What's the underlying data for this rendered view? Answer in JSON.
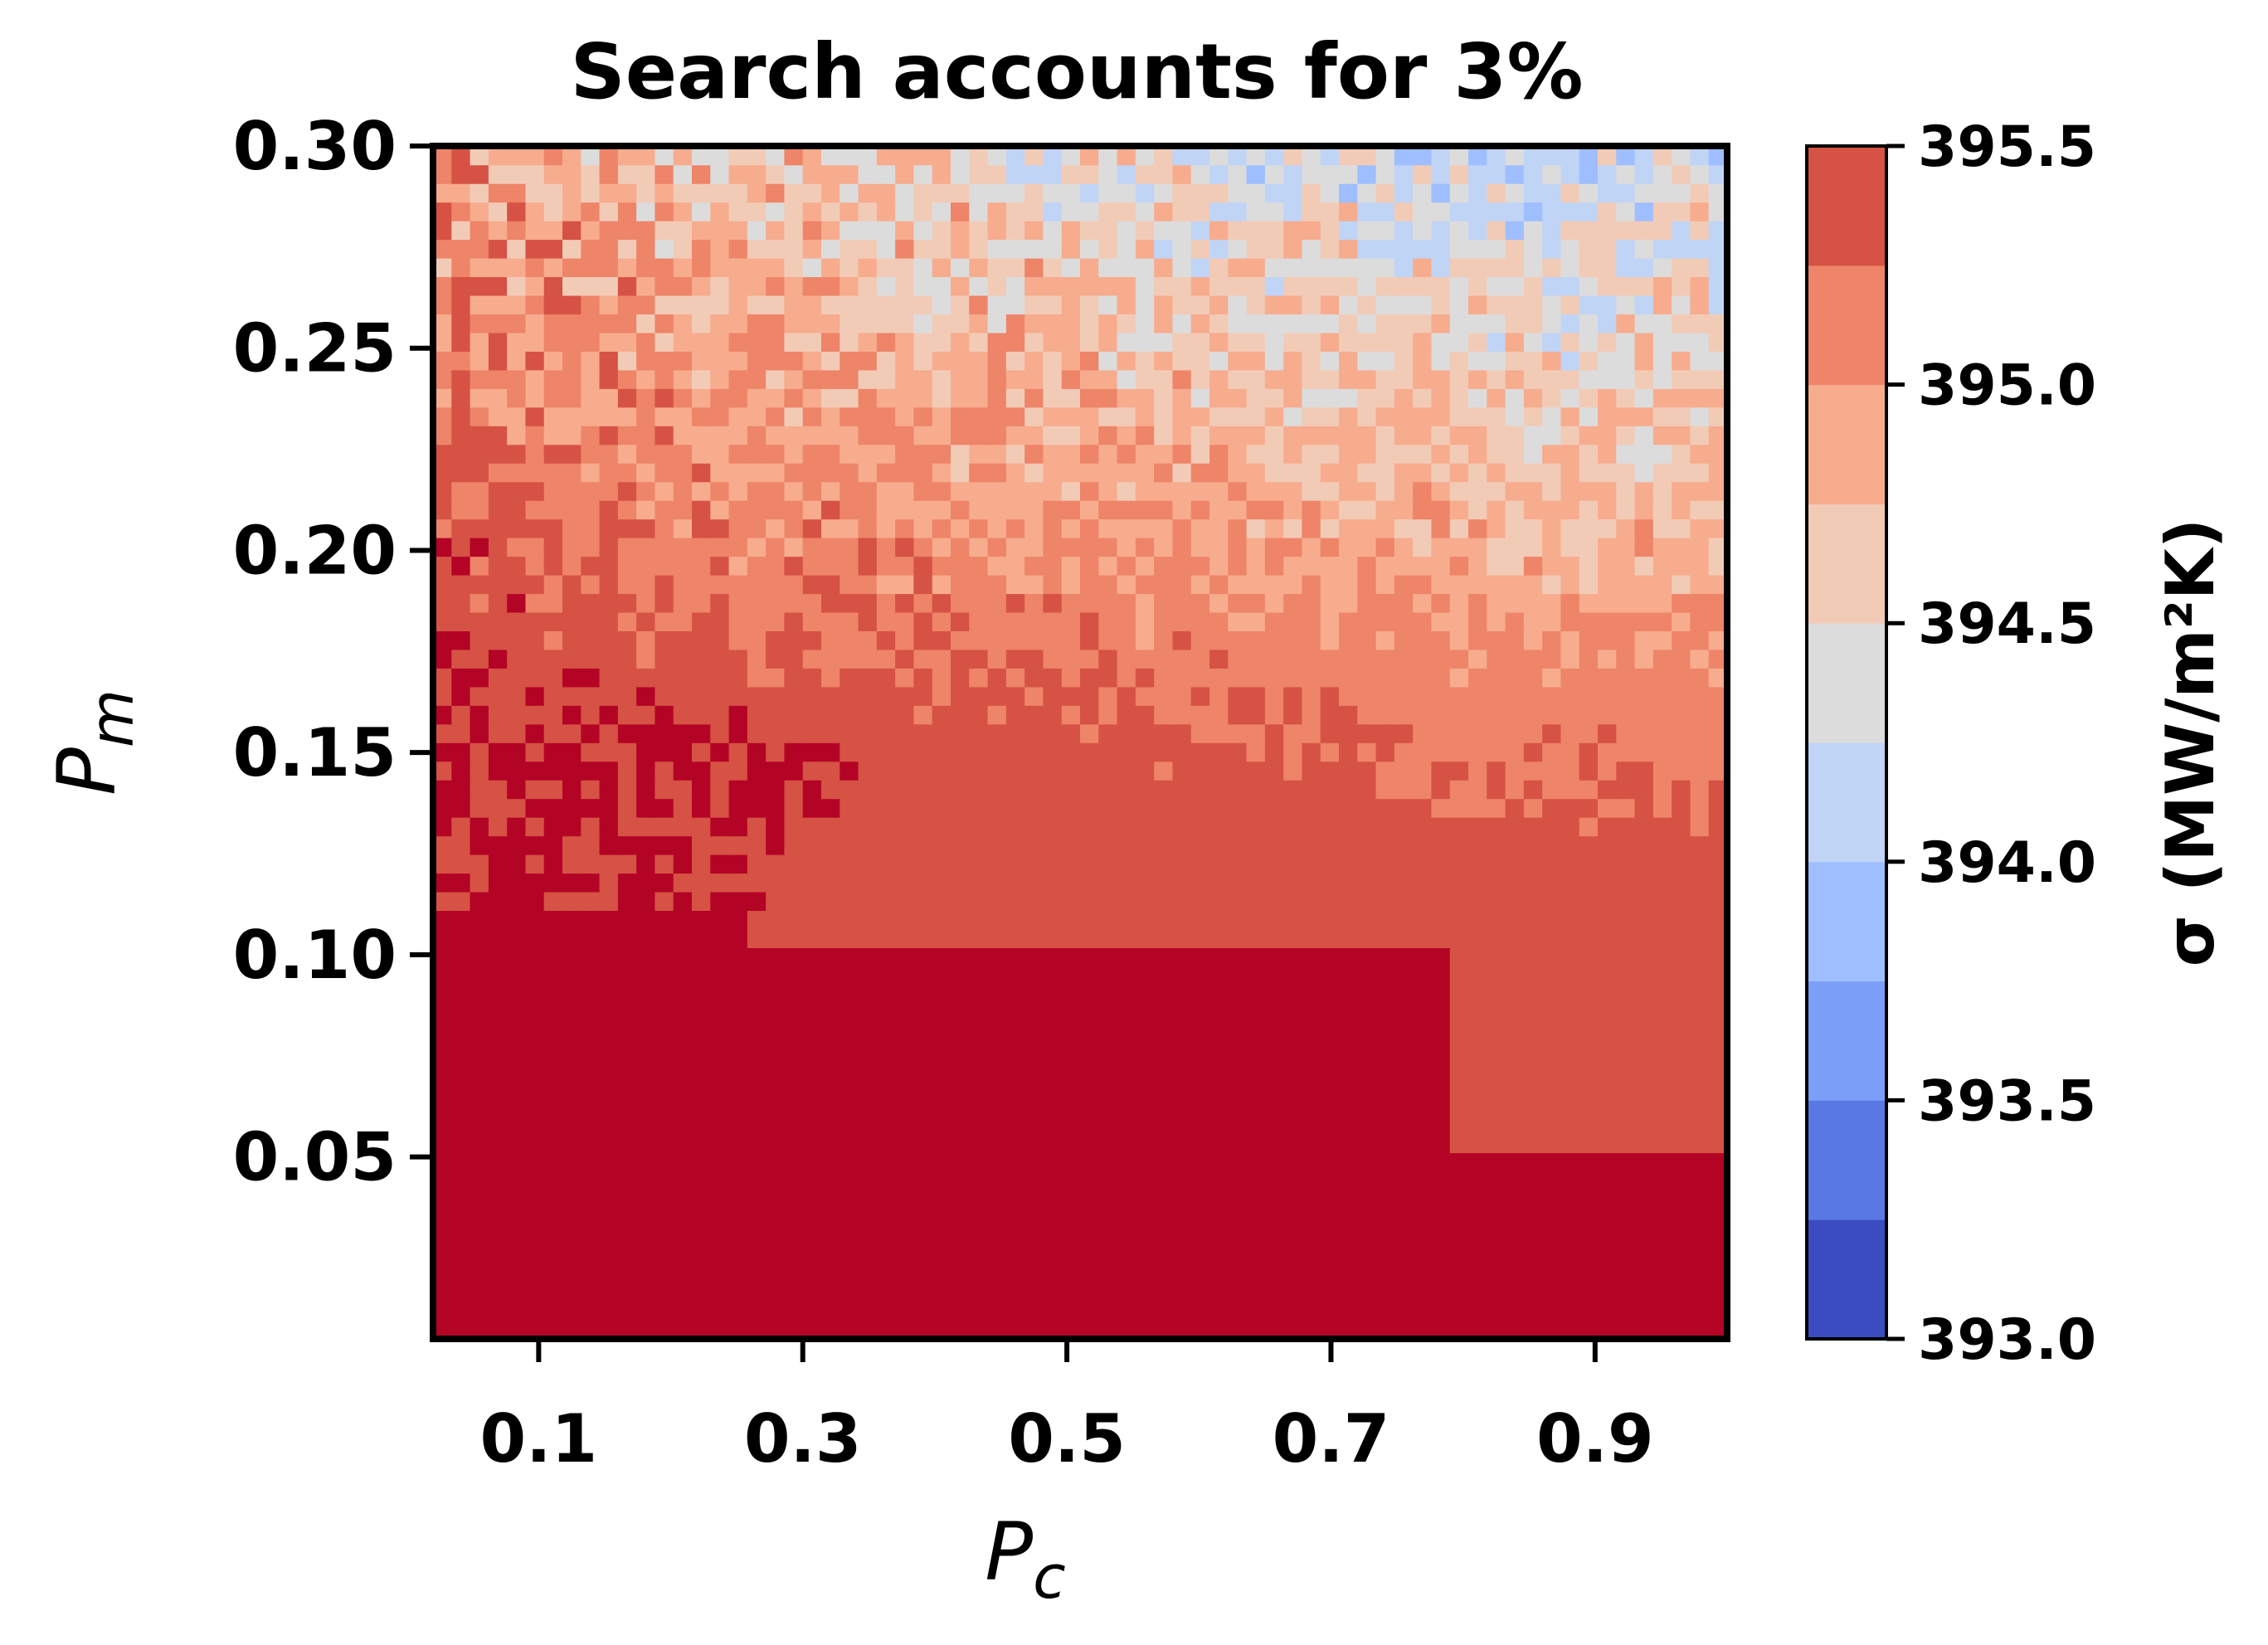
{
  "chart_data": {
    "type": "heatmap",
    "title": "Search accounts for 3%",
    "xlabel": "P",
    "xlabel_sub": "c",
    "ylabel": "P",
    "ylabel_sub": "m",
    "xlim": [
      0.02,
      1.0
    ],
    "ylim": [
      0.005,
      0.3
    ],
    "xticks": [
      0.1,
      0.3,
      0.5,
      0.7,
      0.9
    ],
    "xtick_labels": [
      "0.1",
      "0.3",
      "0.5",
      "0.7",
      "0.9"
    ],
    "yticks": [
      0.05,
      0.1,
      0.15,
      0.2,
      0.25,
      0.3
    ],
    "ytick_labels": [
      "0.05",
      "0.10",
      "0.15",
      "0.20",
      "0.25",
      "0.30"
    ],
    "colorbar": {
      "label": "σ (MW/m²K)",
      "min": 393.0,
      "max": 395.5,
      "levels": [
        393.0,
        393.25,
        393.5,
        393.75,
        394.0,
        394.25,
        394.5,
        394.75,
        395.0,
        395.25,
        395.5
      ],
      "colors": [
        "#3b4cc0",
        "#5a78e4",
        "#7b9ff9",
        "#9ebeff",
        "#c0d4f5",
        "#dddcdc",
        "#f2cbb7",
        "#f7ac8e",
        "#ee8468",
        "#d65244",
        "#b40426"
      ],
      "ticks": [
        393.0,
        393.5,
        394.0,
        394.5,
        395.0,
        395.5
      ],
      "tick_labels": [
        "393.0",
        "393.5",
        "394.0",
        "394.5",
        "395.0",
        "395.5"
      ]
    },
    "field_description": "sigma ≈ 395.5 for P_m below ~0.15; decreases with increasing P_m and P_c toward ~394.2–394.8 near P_m = 0.30, with noisy contour patches",
    "grid_rows": [
      {
        "pm": 0.3,
        "values_by_pc": [
          395.0,
          394.8,
          394.6,
          394.6,
          394.5,
          394.4,
          394.3,
          394.2,
          394.2,
          394.3
        ]
      },
      {
        "pm": 0.25,
        "values_by_pc": [
          395.1,
          395.0,
          394.9,
          394.8,
          394.8,
          394.7,
          394.6,
          394.6,
          394.5,
          394.6
        ]
      },
      {
        "pm": 0.2,
        "values_by_pc": [
          395.4,
          395.2,
          395.1,
          395.1,
          395.0,
          395.0,
          394.9,
          394.9,
          394.8,
          394.9
        ]
      },
      {
        "pm": 0.15,
        "values_by_pc": [
          395.5,
          395.5,
          395.5,
          395.4,
          395.4,
          395.3,
          395.3,
          395.2,
          395.2,
          395.2
        ]
      },
      {
        "pm": 0.1,
        "values_by_pc": [
          395.5,
          395.5,
          395.5,
          395.5,
          395.5,
          395.5,
          395.5,
          395.5,
          395.4,
          395.4
        ]
      },
      {
        "pm": 0.05,
        "values_by_pc": [
          395.5,
          395.5,
          395.5,
          395.5,
          395.5,
          395.5,
          395.5,
          395.5,
          395.5,
          395.5
        ]
      }
    ]
  }
}
